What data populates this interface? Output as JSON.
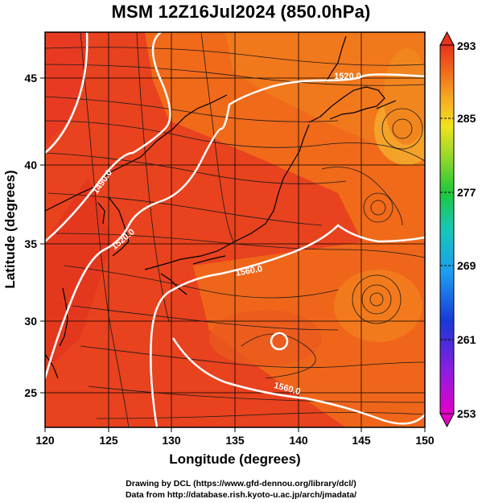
{
  "title": "MSM 12Z16Jul2024 (850.0hPa)",
  "x_axis": {
    "label": "Longitude (degrees)",
    "ticks": [
      "120",
      "125",
      "130",
      "135",
      "140",
      "145",
      "150"
    ],
    "range": [
      120,
      150
    ]
  },
  "y_axis": {
    "label": "Latitude  (degrees)",
    "ticks": [
      "25",
      "30",
      "35",
      "40",
      "45"
    ],
    "range": [
      22.4,
      47.6
    ]
  },
  "colorbar": {
    "ticks": [
      "293",
      "285",
      "277",
      "269",
      "261",
      "253"
    ],
    "range": [
      253,
      293
    ]
  },
  "contour_labels": [
    "1520.0",
    "1490.0",
    "1520.0",
    "1560.0",
    "1560.0"
  ],
  "credits": {
    "line1": "Drawing by DCL (https://www.gfd-dennou.org/library/dcl/)",
    "line2": "Data from http://database.rish.kyoto-u.ac.jp/arch/jmadata/"
  },
  "colors": {
    "field_warm": "#e8421e",
    "field_mid": "#f06a1a",
    "field_light": "#f59a2a",
    "contour": "#ffffff",
    "streamline": "#1a1a1a"
  }
}
